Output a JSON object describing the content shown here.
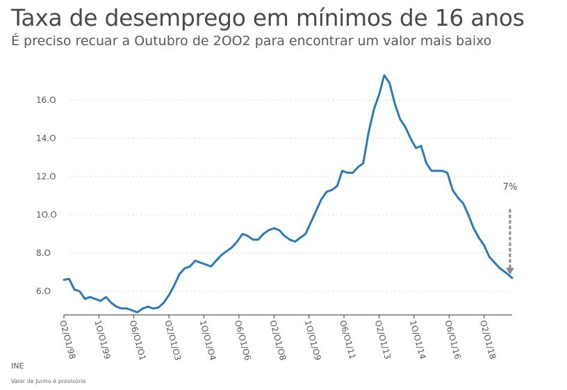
{
  "title": "Taxa de desemprego em mínimos de 16 anos",
  "subtitle": "É preciso recuar a Outubro de 2OO2 para encontrar um valor mais baixo",
  "source": "INE",
  "note": "Valor de Junho é provisório",
  "chart_data": {
    "type": "line",
    "title": "Taxa de desemprego em mínimos de 16 anos",
    "subtitle": "É preciso recuar a Outubro de 2OO2 para encontrar um valor mais baixo",
    "xlabel": "",
    "ylabel": "",
    "ylim": [
      4.8,
      17.6
    ],
    "xlim": [
      "1998-02-01",
      "2019-06-01"
    ],
    "grid": true,
    "y_ticks": [
      6.0,
      8.0,
      10.0,
      12.0,
      14.0,
      16.0
    ],
    "y_tick_labels": [
      "6.O",
      "8.O",
      "1O.O",
      "12.O",
      "14.O",
      "16.O"
    ],
    "x_ticks": [
      "1998-02-01",
      "1999-10-01",
      "2001-06-01",
      "2003-02-01",
      "2004-10-01",
      "2006-06-01",
      "2008-02-01",
      "2009-10-01",
      "2011-06-01",
      "2013-02-01",
      "2014-10-01",
      "2016-06-01",
      "2018-02-01"
    ],
    "x_tick_labels": [
      "O2/O1/98",
      "1O/O1/99",
      "O6/O1/O1",
      "O2/O1/O3",
      "1O/O1/O4",
      "O6/O1/O6",
      "O2/O1/O8",
      "1O/O1/O9",
      "O6/O1/11",
      "O2/O1/13",
      "1O/O1/14",
      "O6/O1/16",
      "O2/O1/18"
    ],
    "annotation": {
      "text": "7%",
      "from_value": 10.3,
      "to_value": 6.9
    },
    "series": [
      {
        "color": "#2a7ab8",
        "points": [
          [
            "1998-02-01",
            6.6
          ],
          [
            "1998-05-01",
            6.65
          ],
          [
            "1998-08-01",
            6.1
          ],
          [
            "1998-11-01",
            6.0
          ],
          [
            "1999-02-01",
            5.6
          ],
          [
            "1999-05-01",
            5.7
          ],
          [
            "1999-08-01",
            5.6
          ],
          [
            "1999-11-01",
            5.5
          ],
          [
            "2000-02-01",
            5.7
          ],
          [
            "2000-05-01",
            5.4
          ],
          [
            "2000-08-01",
            5.2
          ],
          [
            "2000-11-01",
            5.1
          ],
          [
            "2001-02-01",
            5.1
          ],
          [
            "2001-05-01",
            5.0
          ],
          [
            "2001-08-01",
            4.9
          ],
          [
            "2001-11-01",
            5.1
          ],
          [
            "2002-02-01",
            5.2
          ],
          [
            "2002-05-01",
            5.1
          ],
          [
            "2002-08-01",
            5.15
          ],
          [
            "2002-11-01",
            5.4
          ],
          [
            "2003-02-01",
            5.8
          ],
          [
            "2003-05-01",
            6.3
          ],
          [
            "2003-08-01",
            6.9
          ],
          [
            "2003-11-01",
            7.2
          ],
          [
            "2004-02-01",
            7.3
          ],
          [
            "2004-05-01",
            7.6
          ],
          [
            "2004-08-01",
            7.5
          ],
          [
            "2004-11-01",
            7.4
          ],
          [
            "2005-02-01",
            7.3
          ],
          [
            "2005-05-01",
            7.6
          ],
          [
            "2005-08-01",
            7.9
          ],
          [
            "2005-11-01",
            8.1
          ],
          [
            "2006-02-01",
            8.3
          ],
          [
            "2006-05-01",
            8.6
          ],
          [
            "2006-08-01",
            9.0
          ],
          [
            "2006-11-01",
            8.9
          ],
          [
            "2007-02-01",
            8.7
          ],
          [
            "2007-05-01",
            8.7
          ],
          [
            "2007-08-01",
            9.0
          ],
          [
            "2007-11-01",
            9.2
          ],
          [
            "2008-02-01",
            9.3
          ],
          [
            "2008-05-01",
            9.2
          ],
          [
            "2008-08-01",
            8.9
          ],
          [
            "2008-11-01",
            8.7
          ],
          [
            "2009-02-01",
            8.6
          ],
          [
            "2009-05-01",
            8.8
          ],
          [
            "2009-08-01",
            9.0
          ],
          [
            "2009-11-01",
            9.6
          ],
          [
            "2010-02-01",
            10.2
          ],
          [
            "2010-05-01",
            10.8
          ],
          [
            "2010-08-01",
            11.2
          ],
          [
            "2010-11-01",
            11.3
          ],
          [
            "2011-02-01",
            11.5
          ],
          [
            "2011-05-01",
            12.3
          ],
          [
            "2011-08-01",
            12.2
          ],
          [
            "2011-11-01",
            12.2
          ],
          [
            "2012-02-01",
            12.5
          ],
          [
            "2012-05-01",
            12.7
          ],
          [
            "2012-08-01",
            14.3
          ],
          [
            "2012-11-01",
            15.5
          ],
          [
            "2013-02-01",
            16.3
          ],
          [
            "2013-05-01",
            17.3
          ],
          [
            "2013-08-01",
            16.9
          ],
          [
            "2013-11-01",
            15.8
          ],
          [
            "2014-02-01",
            15.0
          ],
          [
            "2014-05-01",
            14.6
          ],
          [
            "2014-08-01",
            14.0
          ],
          [
            "2014-11-01",
            13.5
          ],
          [
            "2015-02-01",
            13.6
          ],
          [
            "2015-05-01",
            12.7
          ],
          [
            "2015-08-01",
            12.3
          ],
          [
            "2015-11-01",
            12.3
          ],
          [
            "2016-02-01",
            12.3
          ],
          [
            "2016-05-01",
            12.2
          ],
          [
            "2016-08-01",
            11.3
          ],
          [
            "2016-11-01",
            10.9
          ],
          [
            "2017-02-01",
            10.6
          ],
          [
            "2017-05-01",
            10.0
          ],
          [
            "2017-08-01",
            9.3
          ],
          [
            "2017-11-01",
            8.8
          ],
          [
            "2018-02-01",
            8.4
          ],
          [
            "2018-05-01",
            7.8
          ],
          [
            "2018-08-01",
            7.5
          ],
          [
            "2018-11-01",
            7.2
          ],
          [
            "2019-02-01",
            7.0
          ],
          [
            "2019-06-01",
            6.7
          ]
        ]
      }
    ]
  }
}
